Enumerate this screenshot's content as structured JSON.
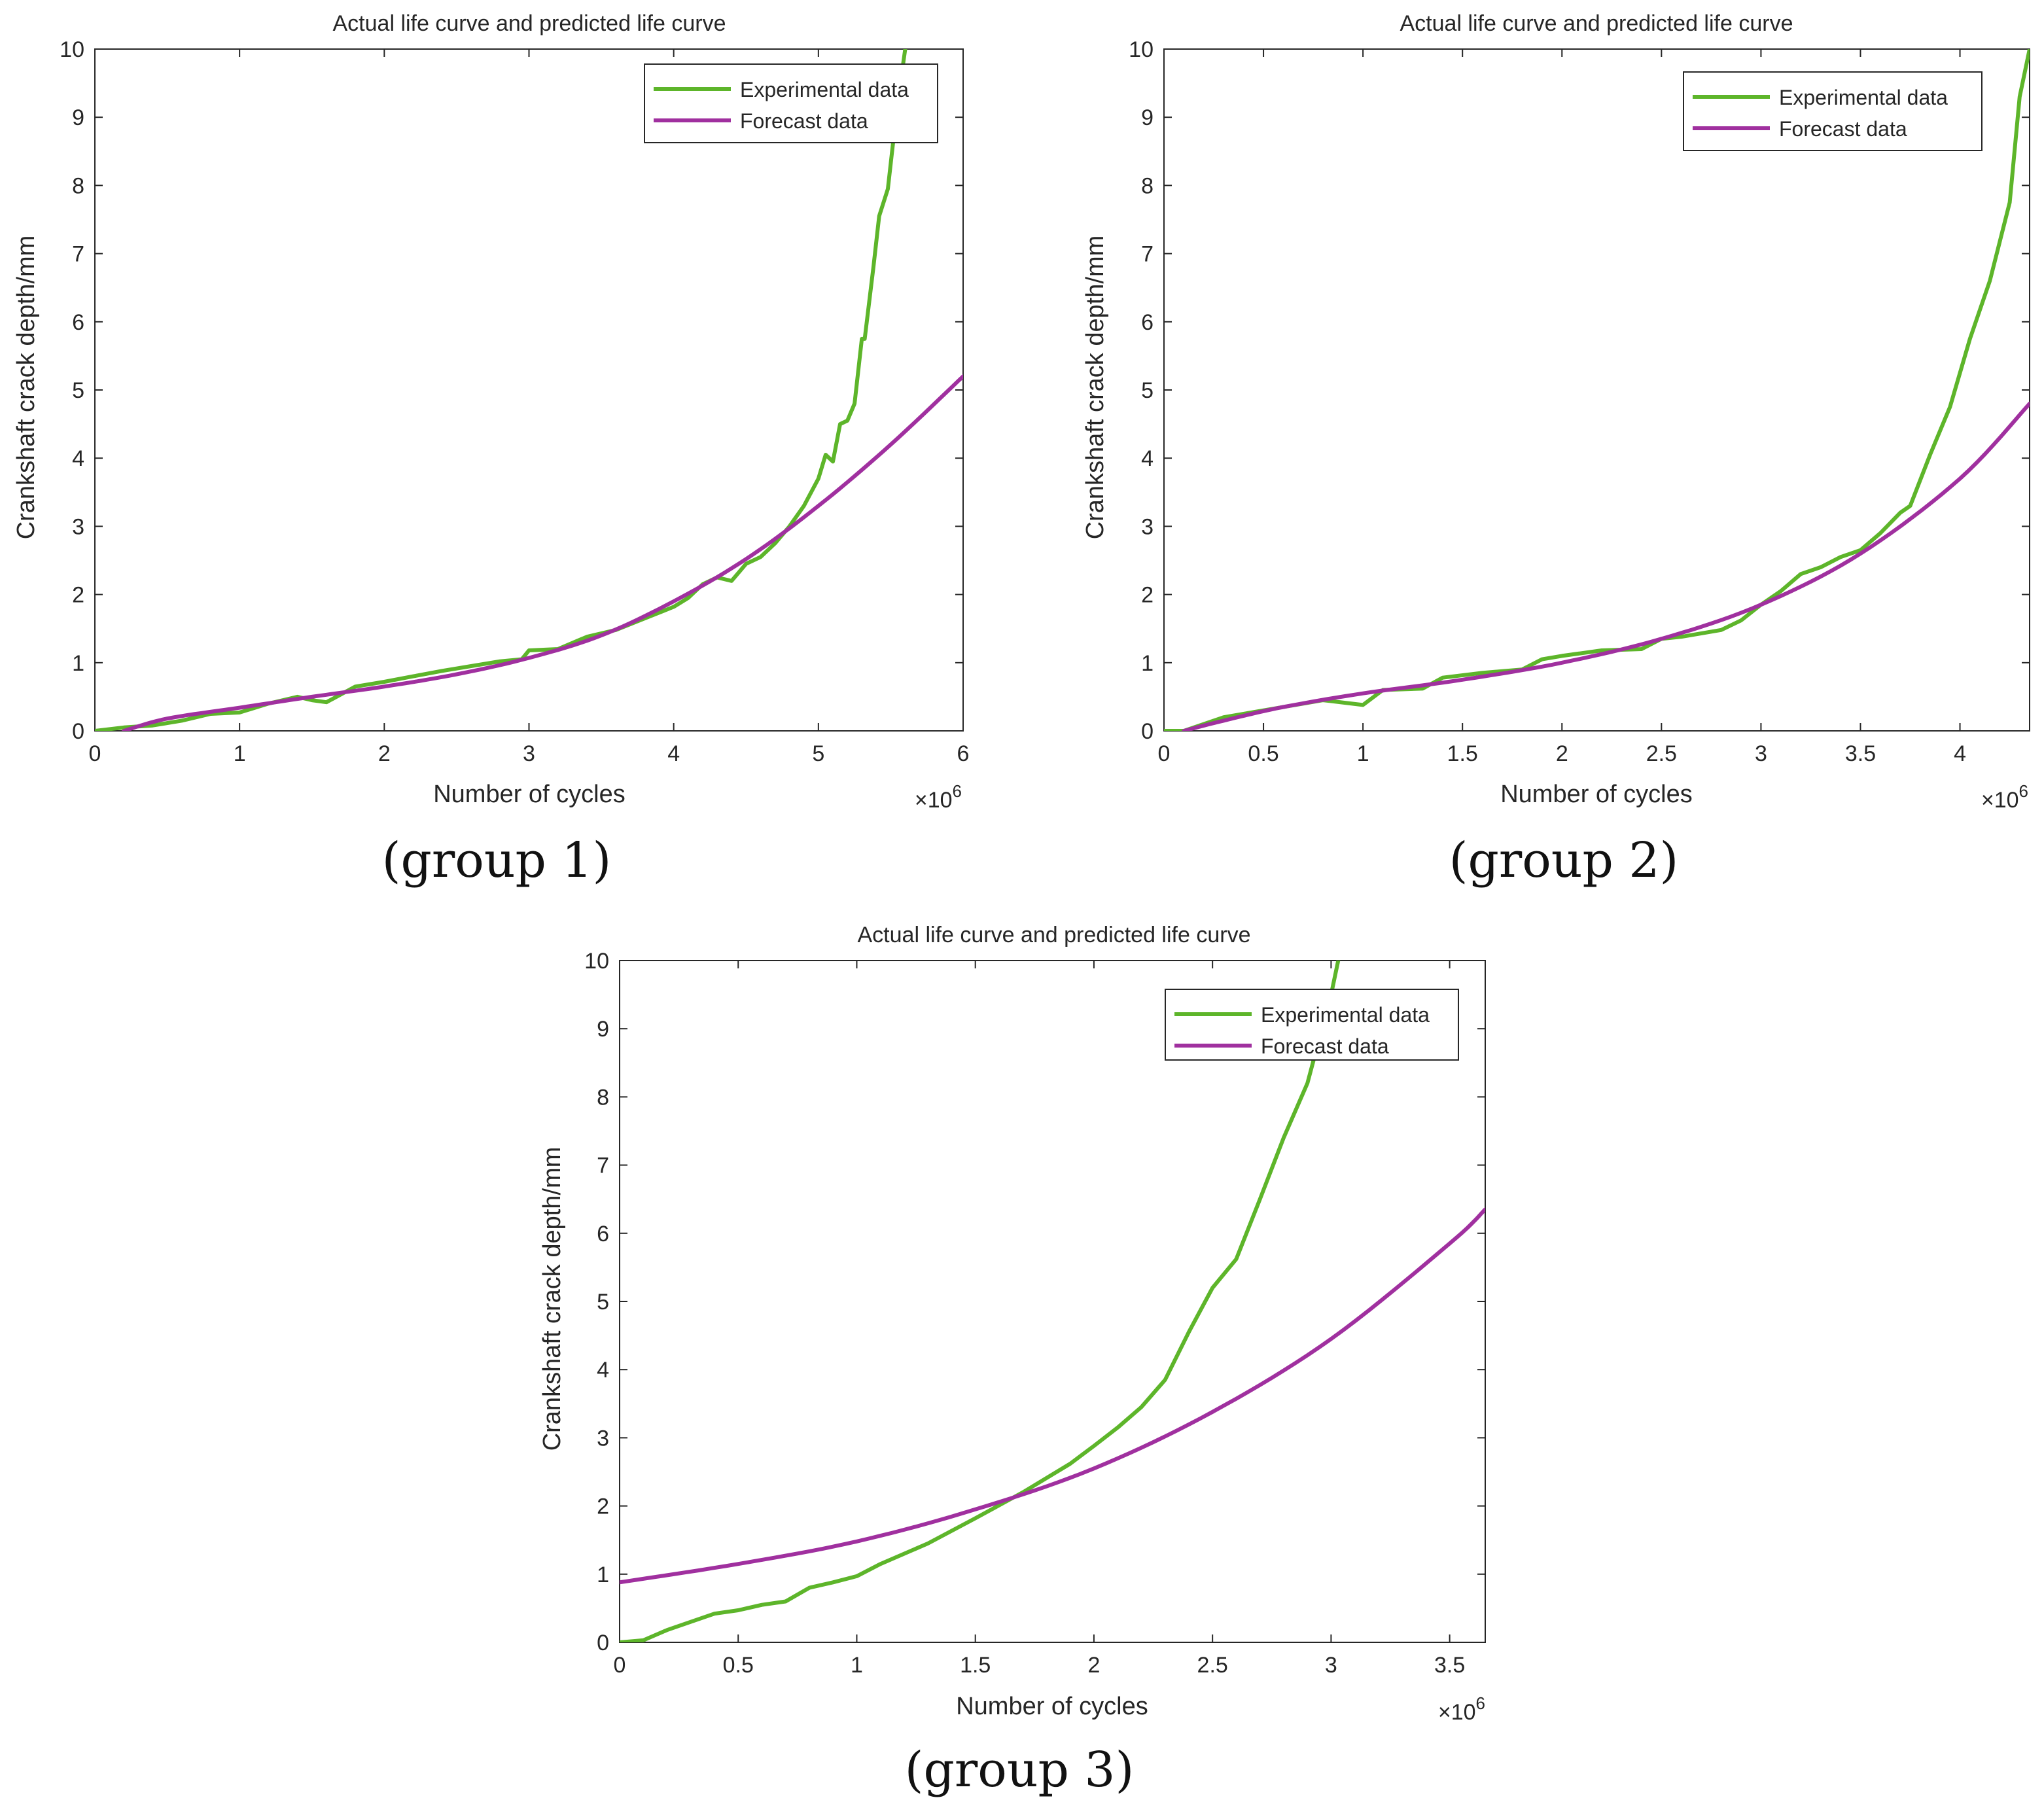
{
  "colors": {
    "experimental": "#5db52a",
    "forecast": "#a0309f",
    "axis": "#262626",
    "background": "#ffffff"
  },
  "chart_data": [
    {
      "type": "line",
      "panel_caption": "(group 1)",
      "title": "Actual life curve and predicted life curve",
      "xlabel": "Number of cycles",
      "ylabel": "Crankshaft crack depth/mm",
      "x_exponent_base": "×10",
      "x_exponent_power": "6",
      "xlim": [
        0,
        6
      ],
      "ylim": [
        0,
        10
      ],
      "xticks": [
        0,
        1,
        2,
        3,
        4,
        5,
        6
      ],
      "xtick_labels": [
        "0",
        "1",
        "2",
        "3",
        "4",
        "5",
        "6"
      ],
      "yticks": [
        0,
        1,
        2,
        3,
        4,
        5,
        6,
        7,
        8,
        9,
        10
      ],
      "ytick_labels": [
        "0",
        "1",
        "2",
        "3",
        "4",
        "5",
        "6",
        "7",
        "8",
        "9",
        "10"
      ],
      "legend_position": "top-right",
      "series": [
        {
          "name": "Experimental data",
          "color_key": "experimental",
          "x": [
            0,
            0.2,
            0.4,
            0.6,
            0.8,
            1.0,
            1.2,
            1.4,
            1.5,
            1.6,
            1.8,
            2.0,
            2.2,
            2.4,
            2.6,
            2.8,
            2.95,
            3.0,
            3.2,
            3.4,
            3.6,
            3.8,
            4.0,
            4.1,
            4.2,
            4.3,
            4.4,
            4.5,
            4.6,
            4.7,
            4.8,
            4.9,
            5.0,
            5.05,
            5.1,
            5.15,
            5.2,
            5.25,
            5.3,
            5.32,
            5.38,
            5.42,
            5.48,
            5.52,
            5.56,
            5.6
          ],
          "y": [
            0.0,
            0.05,
            0.08,
            0.15,
            0.25,
            0.27,
            0.4,
            0.5,
            0.45,
            0.42,
            0.65,
            0.72,
            0.8,
            0.88,
            0.95,
            1.02,
            1.05,
            1.18,
            1.2,
            1.38,
            1.48,
            1.65,
            1.82,
            1.95,
            2.15,
            2.25,
            2.2,
            2.45,
            2.55,
            2.75,
            3.0,
            3.3,
            3.7,
            4.05,
            3.95,
            4.5,
            4.55,
            4.8,
            5.75,
            5.75,
            6.8,
            7.55,
            7.95,
            8.7,
            9.4,
            10.0
          ]
        },
        {
          "name": "Forecast data",
          "color_key": "forecast",
          "model": "exponential",
          "x": [
            0.2,
            0.5,
            1.0,
            1.5,
            2.0,
            2.5,
            3.0,
            3.5,
            4.0,
            4.5,
            5.0,
            5.5,
            6.0
          ],
          "y": [
            0.0,
            0.18,
            0.34,
            0.5,
            0.65,
            0.83,
            1.07,
            1.4,
            1.9,
            2.52,
            3.3,
            4.2,
            5.2
          ]
        }
      ]
    },
    {
      "type": "line",
      "panel_caption": "(group 2)",
      "title": "Actual life curve and predicted life curve",
      "xlabel": "Number of cycles",
      "ylabel": "Crankshaft crack depth/mm",
      "x_exponent_base": "×10",
      "x_exponent_power": "6",
      "xlim": [
        0,
        4.35
      ],
      "ylim": [
        0,
        10
      ],
      "xticks": [
        0,
        0.5,
        1,
        1.5,
        2,
        2.5,
        3,
        3.5,
        4
      ],
      "xtick_labels": [
        "0",
        "0.5",
        "1",
        "1.5",
        "2",
        "2.5",
        "3",
        "3.5",
        "4"
      ],
      "yticks": [
        0,
        1,
        2,
        3,
        4,
        5,
        6,
        7,
        8,
        9,
        10
      ],
      "ytick_labels": [
        "0",
        "1",
        "2",
        "3",
        "4",
        "5",
        "6",
        "7",
        "8",
        "9",
        "10"
      ],
      "legend_position": "top-right",
      "series": [
        {
          "name": "Experimental data",
          "color_key": "experimental",
          "x": [
            0,
            0.1,
            0.3,
            0.5,
            0.7,
            0.8,
            1.0,
            1.1,
            1.3,
            1.4,
            1.6,
            1.8,
            1.9,
            2.0,
            2.2,
            2.4,
            2.5,
            2.6,
            2.8,
            2.9,
            3.0,
            3.1,
            3.2,
            3.3,
            3.4,
            3.5,
            3.6,
            3.7,
            3.75,
            3.85,
            3.95,
            4.05,
            4.15,
            4.25,
            4.3,
            4.35
          ],
          "y": [
            0.0,
            0.0,
            0.2,
            0.3,
            0.4,
            0.45,
            0.38,
            0.6,
            0.62,
            0.78,
            0.85,
            0.9,
            1.05,
            1.1,
            1.18,
            1.2,
            1.35,
            1.38,
            1.48,
            1.62,
            1.85,
            2.05,
            2.3,
            2.4,
            2.55,
            2.65,
            2.9,
            3.2,
            3.3,
            4.05,
            4.75,
            5.75,
            6.6,
            7.75,
            9.3,
            10.0
          ]
        },
        {
          "name": "Forecast data",
          "color_key": "forecast",
          "model": "exponential",
          "x": [
            0.1,
            0.3,
            0.6,
            1.0,
            1.5,
            2.0,
            2.5,
            3.0,
            3.5,
            4.0,
            4.35
          ],
          "y": [
            0.0,
            0.15,
            0.35,
            0.55,
            0.75,
            1.0,
            1.35,
            1.85,
            2.6,
            3.7,
            4.8
          ]
        }
      ]
    },
    {
      "type": "line",
      "panel_caption": "(group 3)",
      "title": "Actual life curve and predicted life curve",
      "xlabel": "Number of cycles",
      "ylabel": "Crankshaft crack depth/mm",
      "x_exponent_base": "×10",
      "x_exponent_power": "6",
      "xlim": [
        0,
        3.65
      ],
      "ylim": [
        0,
        10
      ],
      "xticks": [
        0,
        0.5,
        1,
        1.5,
        2,
        2.5,
        3,
        3.5
      ],
      "xtick_labels": [
        "0",
        "0.5",
        "1",
        "1.5",
        "2",
        "2.5",
        "3",
        "3.5"
      ],
      "yticks": [
        0,
        1,
        2,
        3,
        4,
        5,
        6,
        7,
        8,
        9,
        10
      ],
      "ytick_labels": [
        "0",
        "1",
        "2",
        "3",
        "4",
        "5",
        "6",
        "7",
        "8",
        "9",
        "10"
      ],
      "legend_position": "top-right",
      "series": [
        {
          "name": "Experimental data",
          "color_key": "experimental",
          "x": [
            0,
            0.1,
            0.2,
            0.3,
            0.4,
            0.5,
            0.6,
            0.7,
            0.8,
            0.9,
            1.0,
            1.1,
            1.3,
            1.5,
            1.7,
            1.9,
            2.0,
            2.1,
            2.2,
            2.3,
            2.4,
            2.5,
            2.6,
            2.7,
            2.8,
            2.9,
            3.0,
            3.03
          ],
          "y": [
            0.0,
            0.03,
            0.18,
            0.3,
            0.42,
            0.47,
            0.55,
            0.6,
            0.8,
            0.88,
            0.97,
            1.15,
            1.45,
            1.82,
            2.2,
            2.62,
            2.88,
            3.15,
            3.45,
            3.85,
            4.55,
            5.2,
            5.62,
            6.5,
            7.4,
            8.2,
            9.5,
            10.0
          ]
        },
        {
          "name": "Forecast data",
          "color_key": "forecast",
          "model": "exponential",
          "x": [
            0,
            0.5,
            1.0,
            1.5,
            2.0,
            2.5,
            3.0,
            3.5,
            3.65
          ],
          "y": [
            0.88,
            1.15,
            1.48,
            1.95,
            2.55,
            3.38,
            4.45,
            5.85,
            6.35
          ]
        }
      ]
    }
  ]
}
